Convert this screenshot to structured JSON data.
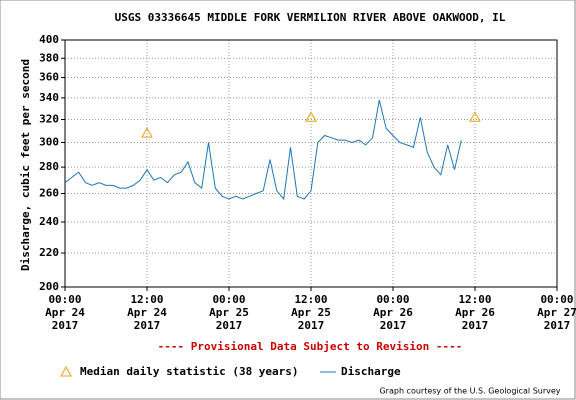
{
  "chart_data": {
    "type": "line",
    "title": "USGS 03336645 MIDDLE FORK VERMILION RIVER ABOVE OAKWOOD, IL",
    "ylabel": "Discharge, cubic feet per second",
    "annotation": "---- Provisional Data Subject to Revision ----",
    "credit": "Graph courtesy of the U.S. Geological Survey",
    "yscale": "log",
    "grid": true,
    "ylim": [
      200,
      400
    ],
    "yticks": [
      200,
      220,
      240,
      260,
      280,
      300,
      320,
      340,
      360,
      380,
      400
    ],
    "xlim": [
      "2017-04-24 00:00",
      "2017-04-27 00:00"
    ],
    "xticks": [
      {
        "value": "2017-04-24 00:00",
        "label": [
          "00:00",
          "Apr 24",
          "2017"
        ]
      },
      {
        "value": "2017-04-24 12:00",
        "label": [
          "12:00",
          "Apr 24",
          "2017"
        ]
      },
      {
        "value": "2017-04-25 00:00",
        "label": [
          "00:00",
          "Apr 25",
          "2017"
        ]
      },
      {
        "value": "2017-04-25 12:00",
        "label": [
          "12:00",
          "Apr 25",
          "2017"
        ]
      },
      {
        "value": "2017-04-26 00:00",
        "label": [
          "00:00",
          "Apr 26",
          "2017"
        ]
      },
      {
        "value": "2017-04-26 12:00",
        "label": [
          "12:00",
          "Apr 26",
          "2017"
        ]
      },
      {
        "value": "2017-04-27 00:00",
        "label": [
          "00:00",
          "Apr 27",
          "2017"
        ]
      }
    ],
    "series": [
      {
        "name": "Median daily statistic (38 years)",
        "color": "#e8a317",
        "marker": "triangle",
        "x": [
          "2017-04-24 12:00",
          "2017-04-25 12:00",
          "2017-04-26 12:00"
        ],
        "values": [
          308,
          322,
          322
        ]
      },
      {
        "name": "Discharge",
        "color": "#1f77b4",
        "marker": "line",
        "x": [
          "2017-04-24 00:00",
          "2017-04-24 01:00",
          "2017-04-24 02:00",
          "2017-04-24 03:00",
          "2017-04-24 04:00",
          "2017-04-24 05:00",
          "2017-04-24 06:00",
          "2017-04-24 07:00",
          "2017-04-24 08:00",
          "2017-04-24 09:00",
          "2017-04-24 10:00",
          "2017-04-24 11:00",
          "2017-04-24 12:00",
          "2017-04-24 13:00",
          "2017-04-24 14:00",
          "2017-04-24 15:00",
          "2017-04-24 16:00",
          "2017-04-24 17:00",
          "2017-04-24 18:00",
          "2017-04-24 19:00",
          "2017-04-24 20:00",
          "2017-04-24 21:00",
          "2017-04-24 22:00",
          "2017-04-24 23:00",
          "2017-04-25 00:00",
          "2017-04-25 01:00",
          "2017-04-25 02:00",
          "2017-04-25 03:00",
          "2017-04-25 04:00",
          "2017-04-25 05:00",
          "2017-04-25 06:00",
          "2017-04-25 07:00",
          "2017-04-25 08:00",
          "2017-04-25 09:00",
          "2017-04-25 10:00",
          "2017-04-25 11:00",
          "2017-04-25 12:00",
          "2017-04-25 13:00",
          "2017-04-25 14:00",
          "2017-04-25 15:00",
          "2017-04-25 16:00",
          "2017-04-25 17:00",
          "2017-04-25 18:00",
          "2017-04-25 19:00",
          "2017-04-25 20:00",
          "2017-04-25 21:00",
          "2017-04-25 22:00",
          "2017-04-25 23:00",
          "2017-04-26 00:00",
          "2017-04-26 01:00",
          "2017-04-26 02:00",
          "2017-04-26 03:00",
          "2017-04-26 04:00",
          "2017-04-26 05:00",
          "2017-04-26 06:00",
          "2017-04-26 07:00",
          "2017-04-26 08:00",
          "2017-04-26 09:00",
          "2017-04-26 10:00"
        ],
        "values": [
          268,
          272,
          276,
          268,
          266,
          268,
          266,
          266,
          264,
          264,
          266,
          270,
          278,
          270,
          272,
          268,
          274,
          276,
          284,
          268,
          264,
          300,
          264,
          258,
          256,
          258,
          256,
          258,
          260,
          262,
          286,
          262,
          256,
          296,
          258,
          256,
          262,
          300,
          306,
          304,
          302,
          302,
          300,
          302,
          298,
          304,
          338,
          312,
          306,
          300,
          298,
          296,
          322,
          292,
          280,
          274,
          298,
          278,
          302
        ]
      }
    ]
  }
}
